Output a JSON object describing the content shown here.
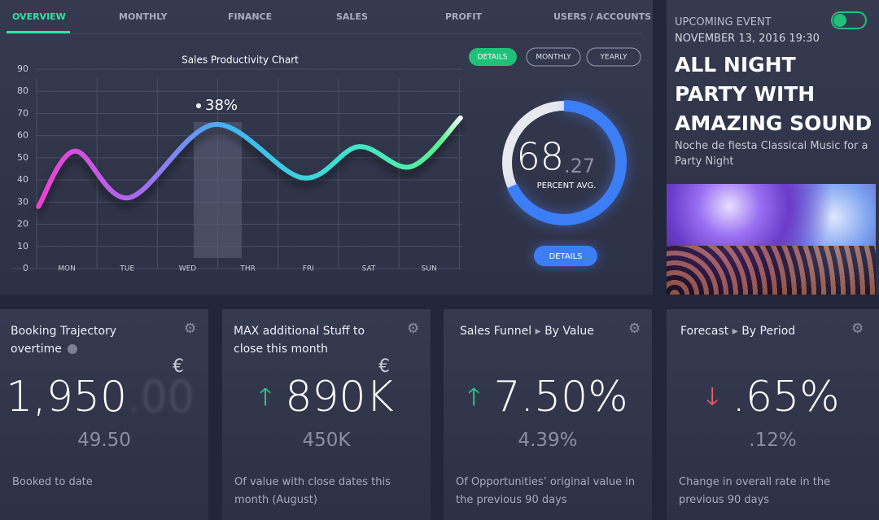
{
  "tabs": [
    "OVERVIEW",
    "MONTHLY",
    "FINANCE",
    "SALES",
    "PROFIT",
    "USERS / ACCOUNTS"
  ],
  "chart_data": {
    "type": "line",
    "title": "Sales Productivity Chart",
    "x": [
      -0.47,
      0.13,
      1.03,
      2.44,
      3.9,
      4.83,
      5.7,
      6.52
    ],
    "values": [
      28,
      53,
      32,
      65,
      41,
      55,
      46,
      68
    ],
    "xlim": [
      -0.5,
      6.55
    ],
    "xticks": [
      {
        "value": 0,
        "label": "MON"
      },
      {
        "value": 1,
        "label": "TUE"
      },
      {
        "value": 2,
        "label": "WED"
      },
      {
        "value": 3,
        "label": "THR"
      },
      {
        "value": 4,
        "label": "FRI"
      },
      {
        "value": 5,
        "label": "SAT"
      },
      {
        "value": 6,
        "label": "SUN"
      }
    ],
    "ylim": [
      0,
      90
    ],
    "yticks": [
      0,
      10,
      20,
      30,
      40,
      50,
      60,
      70,
      80,
      90
    ],
    "grid": true,
    "annotation": "38%"
  },
  "chart_buttons": [
    "DETAILS",
    "MONTHLY",
    "YEARLY"
  ],
  "gauge": {
    "value": 68.27,
    "integer": "68",
    "decimal": ".27",
    "label": "PERCENT AVG.",
    "button": "DETAILS"
  },
  "event": {
    "kicker": "UPCOMING EVENT",
    "date": "NOVEMBER 13, 2016 19:30",
    "title": "ALL NIGHT PARTY WITH AMAZING SOUND",
    "description": "Noche de fiesta Classical Music for a Party Night"
  },
  "cards": [
    {
      "title": "Booking Trajectory overtime",
      "value": "1,950",
      "decimal": ".00",
      "currency": "€",
      "sub": "49.50",
      "note": "Booked to date"
    },
    {
      "title": "MAX additional Stuff to close this month",
      "value": "890K",
      "currency": "€",
      "sub": "450K",
      "note": "Of value with close dates this month (August)"
    },
    {
      "title": "Sales Funnel",
      "subtitle": "By Value",
      "value": "7.50%",
      "sub": "4.39%",
      "note": "Of Opportunities’ original value in the previous 90 days"
    },
    {
      "title": "Forecast",
      "subtitle": "By Period",
      "value": ".65%",
      "sub": ".12%",
      "note": "Change in overall rate in the previous 90 days"
    }
  ]
}
